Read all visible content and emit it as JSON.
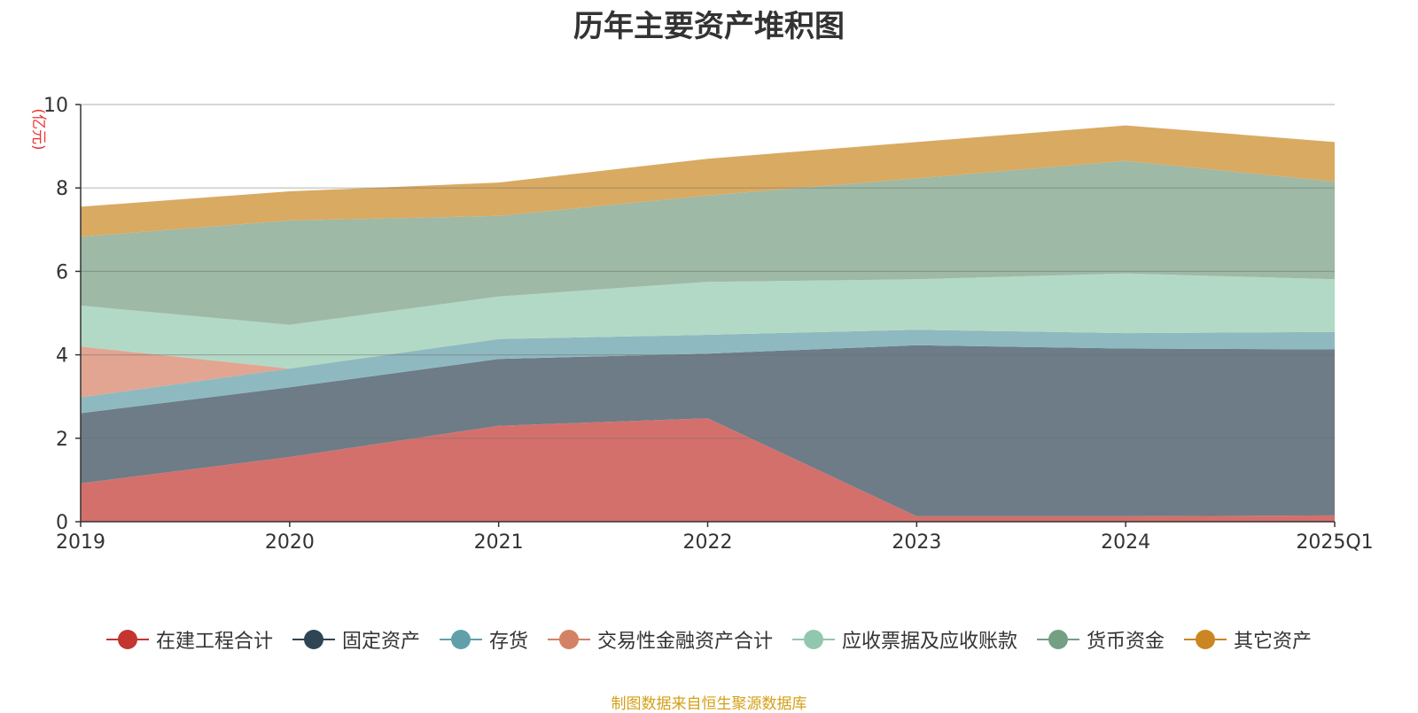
{
  "title": "历年主要资产堆积图",
  "source": "制图数据来自恒生聚源数据库",
  "chart_data": {
    "type": "area",
    "stacked": true,
    "title": "历年主要资产堆积图",
    "ylabel": "(亿元)",
    "ylim": [
      0,
      10
    ],
    "yticks": [
      0,
      2,
      4,
      6,
      8,
      10
    ],
    "categories": [
      "2019",
      "2020",
      "2021",
      "2022",
      "2023",
      "2024",
      "2025Q1"
    ],
    "grid": true,
    "legend_position": "bottom",
    "series": [
      {
        "name": "在建工程合计",
        "color": "#c23531",
        "fill": "#d4706c",
        "values": [
          0.92,
          1.55,
          2.3,
          2.48,
          0.13,
          0.13,
          0.15
        ]
      },
      {
        "name": "固定资产",
        "color": "#2f4554",
        "fill": "#6d7c87",
        "values": [
          1.68,
          1.67,
          1.6,
          1.55,
          4.1,
          4.02,
          3.98
        ]
      },
      {
        "name": "存货",
        "color": "#61a0a8",
        "fill": "#8fb9c0",
        "values": [
          0.38,
          0.45,
          0.48,
          0.45,
          0.37,
          0.37,
          0.42
        ]
      },
      {
        "name": "交易性金融资产合计",
        "color": "#d48265",
        "fill": "#e2a591",
        "values": [
          1.22,
          0.0,
          0.0,
          0.0,
          0.0,
          0.0,
          0.0
        ]
      },
      {
        "name": "应收票据及应收账款",
        "color": "#91c7ae",
        "fill": "#b2d9c6",
        "values": [
          0.98,
          1.05,
          1.02,
          1.27,
          1.21,
          1.43,
          1.26
        ]
      },
      {
        "name": "货币资金",
        "color": "#749f83",
        "fill": "#9eb9a6",
        "values": [
          1.65,
          2.5,
          1.93,
          2.07,
          2.42,
          2.7,
          2.34
        ]
      },
      {
        "name": "其它资产",
        "color": "#ca8622",
        "fill": "#d9aa62",
        "values": [
          0.72,
          0.7,
          0.8,
          0.88,
          0.87,
          0.85,
          0.95
        ]
      }
    ]
  }
}
